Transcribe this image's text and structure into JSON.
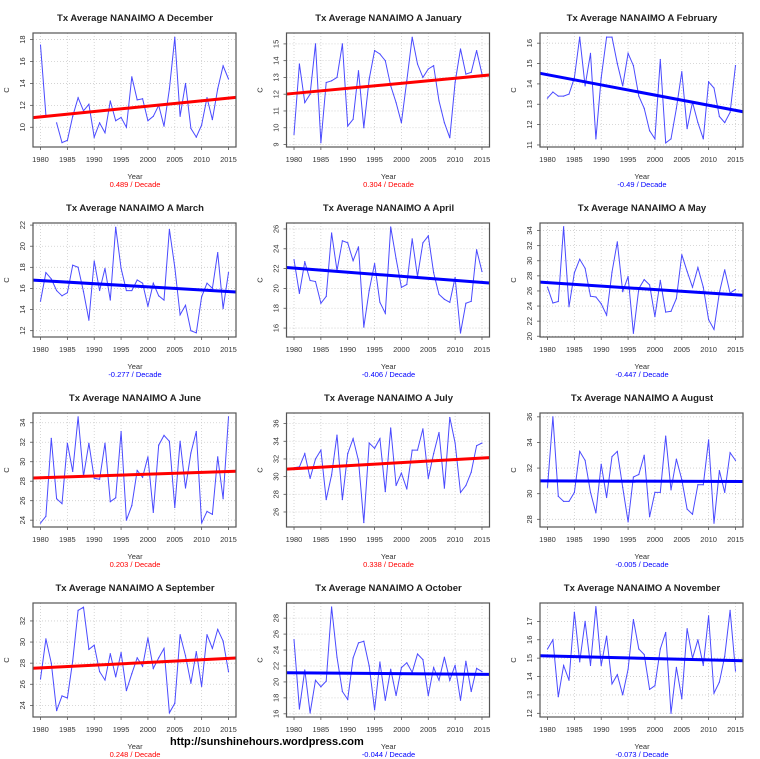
{
  "footer": "http://sunshinehours.wordpress.com",
  "colors": {
    "series": "#4a4aff",
    "up_trend": "#ff0000",
    "down_trend": "#0000ff",
    "grid": "#cccccc",
    "frame": "#555555"
  },
  "chart_data": [
    {
      "type": "line",
      "title": "Tx Average NANAIMO A December",
      "xlabel": "Year",
      "ylabel": "C",
      "decade_label": "0.489  / Decade",
      "trend_color": "#ff0000",
      "xlim": [
        1978.6,
        2016.4
      ],
      "ylim": [
        8.2,
        18.6
      ],
      "yticks": [
        10,
        12,
        14,
        16,
        18
      ],
      "xticks": [
        1980,
        1985,
        1990,
        1995,
        2000,
        2005,
        2010,
        2015
      ],
      "grid": true,
      "x_start": 1980,
      "values": [
        17.5,
        11.1,
        null,
        10.4,
        8.6,
        8.8,
        11.0,
        12.7,
        11.5,
        12.1,
        9.1,
        10.4,
        9.5,
        12.4,
        10.6,
        10.9,
        10.0,
        14.6,
        12.5,
        12.6,
        10.6,
        11.0,
        12.0,
        10.1,
        13.5,
        18.2,
        11.0,
        14.0,
        9.9,
        9.1,
        10.2,
        12.7,
        10.7,
        13.5,
        15.6,
        14.4
      ],
      "trend": {
        "start": [
          1980,
          10.95
        ],
        "end": [
          2015,
          12.66
        ]
      }
    },
    {
      "type": "line",
      "title": "Tx Average NANAIMO A January",
      "xlabel": "Year",
      "ylabel": "C",
      "decade_label": "0.304  / Decade",
      "trend_color": "#ff0000",
      "xlim": [
        1978.6,
        2016.4
      ],
      "ylim": [
        8.85,
        15.65
      ],
      "yticks": [
        9,
        10,
        11,
        12,
        13,
        14,
        15
      ],
      "xticks": [
        1980,
        1985,
        1990,
        1995,
        2000,
        2005,
        2010,
        2015
      ],
      "grid": true,
      "x_start": 1980,
      "values": [
        9.6,
        13.8,
        11.5,
        12.0,
        15.0,
        9.1,
        12.7,
        12.8,
        13.0,
        15.0,
        10.1,
        10.5,
        13.4,
        10.0,
        12.9,
        14.6,
        14.4,
        14.0,
        12.5,
        11.5,
        10.3,
        12.8,
        15.4,
        13.8,
        13.0,
        13.5,
        13.7,
        11.6,
        10.3,
        9.4,
        12.7,
        14.7,
        13.2,
        13.3,
        14.6,
        13.2
      ],
      "trend": {
        "start": [
          1980,
          12.05
        ],
        "end": [
          2015,
          13.1
        ]
      }
    },
    {
      "type": "line",
      "title": "Tx Average NANAIMO A February",
      "xlabel": "Year",
      "ylabel": "C",
      "decade_label": "-0.49  / Decade",
      "trend_color": "#0000ff",
      "xlim": [
        1978.6,
        2016.4
      ],
      "ylim": [
        10.9,
        16.5
      ],
      "yticks": [
        11,
        12,
        13,
        14,
        15,
        16
      ],
      "xticks": [
        1980,
        1985,
        1990,
        1995,
        2000,
        2005,
        2010,
        2015
      ],
      "grid": true,
      "x_start": 1980,
      "values": [
        13.3,
        13.6,
        13.4,
        13.4,
        13.5,
        14.3,
        16.3,
        13.9,
        15.5,
        11.3,
        14.3,
        16.3,
        16.3,
        15.0,
        13.9,
        15.5,
        14.9,
        13.4,
        12.8,
        11.7,
        11.3,
        15.2,
        11.1,
        11.3,
        12.8,
        14.6,
        11.8,
        13.1,
        12.1,
        11.3,
        14.1,
        13.8,
        12.4,
        12.1,
        12.6,
        14.9
      ],
      "trend": {
        "start": [
          1980,
          14.45
        ],
        "end": [
          2015,
          12.7
        ]
      }
    },
    {
      "type": "line",
      "title": "Tx Average NANAIMO A March",
      "xlabel": "Year",
      "ylabel": "C",
      "decade_label": "-0.277  / Decade",
      "trend_color": "#0000ff",
      "xlim": [
        1978.6,
        2016.4
      ],
      "ylim": [
        11.4,
        22.2
      ],
      "yticks": [
        12,
        14,
        16,
        18,
        20,
        22
      ],
      "xticks": [
        1980,
        1985,
        1990,
        1995,
        2000,
        2005,
        2010,
        2015
      ],
      "grid": true,
      "x_start": 1980,
      "values": [
        14.8,
        17.5,
        16.9,
        15.8,
        15.3,
        15.6,
        18.2,
        18.0,
        15.7,
        13.0,
        18.6,
        15.8,
        17.9,
        14.9,
        21.8,
        17.9,
        15.8,
        15.8,
        16.8,
        16.5,
        14.3,
        16.5,
        15.3,
        14.9,
        21.6,
        18.0,
        13.5,
        14.4,
        12.0,
        11.8,
        15.2,
        16.5,
        16.0,
        19.4,
        14.1,
        17.5
      ],
      "trend": {
        "start": [
          1980,
          16.75
        ],
        "end": [
          2015,
          15.7
        ]
      }
    },
    {
      "type": "line",
      "title": "Tx Average NANAIMO A April",
      "xlabel": "Year",
      "ylabel": "C",
      "decade_label": "-0.406  / Decade",
      "trend_color": "#0000ff",
      "xlim": [
        1978.6,
        2016.4
      ],
      "ylim": [
        15.1,
        26.6
      ],
      "yticks": [
        16,
        18,
        20,
        22,
        24,
        26
      ],
      "xticks": [
        1980,
        1985,
        1990,
        1995,
        2000,
        2005,
        2010,
        2015
      ],
      "grid": true,
      "x_start": 1980,
      "values": [
        22.9,
        19.5,
        22.7,
        20.8,
        20.7,
        18.5,
        19.2,
        25.6,
        21.8,
        24.8,
        24.6,
        22.8,
        24.2,
        16.1,
        19.8,
        22.5,
        18.6,
        17.5,
        26.2,
        23.0,
        20.1,
        20.4,
        25.0,
        21.2,
        24.6,
        25.3,
        21.6,
        19.4,
        18.9,
        18.6,
        21.1,
        15.5,
        18.5,
        18.7,
        23.9,
        21.7
      ],
      "trend": {
        "start": [
          1980,
          22.05
        ],
        "end": [
          2015,
          20.6
        ]
      }
    },
    {
      "type": "line",
      "title": "Tx Average NANAIMO A May",
      "xlabel": "Year",
      "ylabel": "C",
      "decade_label": "-0.447  / Decade",
      "trend_color": "#0000ff",
      "xlim": [
        1978.6,
        2016.4
      ],
      "ylim": [
        19.9,
        35.0
      ],
      "yticks": [
        20,
        22,
        24,
        26,
        28,
        30,
        32,
        34
      ],
      "xticks": [
        1980,
        1985,
        1990,
        1995,
        2000,
        2005,
        2010,
        2015
      ],
      "grid": true,
      "x_start": 1980,
      "values": [
        26.5,
        24.4,
        24.6,
        34.5,
        23.9,
        28.4,
        30.2,
        29.0,
        25.3,
        25.2,
        24.3,
        22.8,
        28.5,
        32.5,
        25.9,
        27.9,
        20.4,
        26.3,
        27.5,
        26.8,
        22.6,
        27.4,
        23.2,
        23.3,
        25.0,
        30.8,
        28.6,
        26.5,
        29.1,
        26.5,
        22.2,
        20.9,
        25.8,
        28.8,
        25.7,
        26.2
      ],
      "trend": {
        "start": [
          1980,
          27.1
        ],
        "end": [
          2015,
          25.5
        ]
      }
    },
    {
      "type": "line",
      "title": "Tx Average NANAIMO A June",
      "xlabel": "Year",
      "ylabel": "C",
      "decade_label": "0.203  / Decade",
      "trend_color": "#ff0000",
      "xlim": [
        1978.6,
        2016.4
      ],
      "ylim": [
        23.3,
        35.0
      ],
      "yticks": [
        24,
        26,
        28,
        30,
        32,
        34
      ],
      "xticks": [
        1980,
        1985,
        1990,
        1995,
        2000,
        2005,
        2010,
        2015
      ],
      "grid": true,
      "x_start": 1980,
      "values": [
        23.7,
        24.4,
        32.4,
        26.2,
        25.7,
        31.9,
        29.0,
        34.6,
        28.5,
        31.9,
        28.3,
        28.2,
        31.9,
        25.9,
        26.3,
        33.1,
        24.0,
        25.5,
        29.1,
        28.4,
        30.5,
        24.8,
        31.7,
        32.7,
        32.1,
        25.3,
        32.1,
        27.3,
        30.9,
        33.1,
        23.7,
        24.9,
        24.6,
        30.5,
        26.2,
        34.6
      ],
      "trend": {
        "start": [
          1980,
          28.35
        ],
        "end": [
          2015,
          29.0
        ]
      }
    },
    {
      "type": "line",
      "title": "Tx Average NANAIMO A July",
      "xlabel": "Year",
      "ylabel": "C",
      "decade_label": "0.338  / Decade",
      "trend_color": "#ff0000",
      "xlim": [
        1978.6,
        2016.4
      ],
      "ylim": [
        24.3,
        37.2
      ],
      "yticks": [
        26,
        28,
        30,
        32,
        34,
        36
      ],
      "xticks": [
        1980,
        1985,
        1990,
        1995,
        2000,
        2005,
        2010,
        2015
      ],
      "grid": true,
      "x_start": 1980,
      "values": [
        31.0,
        31.1,
        32.6,
        29.8,
        32.0,
        33.0,
        27.4,
        30.2,
        34.7,
        27.4,
        32.6,
        34.3,
        31.8,
        24.8,
        33.8,
        33.2,
        34.3,
        28.3,
        35.5,
        29.0,
        30.4,
        28.6,
        33.0,
        33.0,
        35.4,
        29.8,
        32.6,
        35.0,
        28.7,
        36.7,
        33.8,
        28.2,
        29.0,
        30.5,
        33.5,
        33.8
      ],
      "trend": {
        "start": [
          1980,
          30.9
        ],
        "end": [
          2015,
          32.1
        ]
      }
    },
    {
      "type": "line",
      "title": "Tx Average NANAIMO A August",
      "xlabel": "Year",
      "ylabel": "C",
      "decade_label": "-0.005  / Decade",
      "trend_color": "#0000ff",
      "xlim": [
        1978.6,
        2016.4
      ],
      "ylim": [
        27.4,
        36.3
      ],
      "yticks": [
        28,
        30,
        32,
        34,
        36
      ],
      "xticks": [
        1980,
        1985,
        1990,
        1995,
        2000,
        2005,
        2010,
        2015
      ],
      "grid": true,
      "x_start": 1980,
      "values": [
        30.5,
        36.0,
        29.8,
        29.4,
        29.4,
        30.1,
        33.3,
        32.6,
        30.1,
        28.5,
        32.3,
        29.7,
        32.9,
        33.3,
        30.5,
        27.8,
        31.3,
        31.5,
        33.0,
        28.2,
        30.1,
        30.1,
        34.5,
        30.3,
        32.7,
        31.1,
        28.8,
        28.4,
        30.7,
        30.7,
        34.2,
        27.7,
        31.8,
        30.1,
        33.2,
        32.6
      ],
      "trend": {
        "start": [
          1980,
          31.0
        ],
        "end": [
          2015,
          30.95
        ]
      }
    },
    {
      "type": "line",
      "title": "Tx Average NANAIMO A September",
      "xlabel": "Year",
      "ylabel": "C",
      "decade_label": "0.248  / Decade",
      "trend_color": "#ff0000",
      "xlim": [
        1978.6,
        2016.4
      ],
      "ylim": [
        22.9,
        33.7
      ],
      "yticks": [
        24,
        26,
        28,
        30,
        32
      ],
      "xticks": [
        1980,
        1985,
        1990,
        1995,
        2000,
        2005,
        2010,
        2015
      ],
      "grid": true,
      "x_start": 1980,
      "values": [
        26.5,
        30.3,
        28.0,
        23.5,
        24.9,
        24.7,
        28.2,
        33.0,
        33.3,
        29.3,
        29.7,
        27.2,
        26.4,
        28.9,
        26.7,
        29.0,
        25.4,
        27.0,
        28.5,
        27.7,
        30.4,
        27.5,
        28.5,
        29.4,
        23.3,
        24.2,
        30.7,
        28.7,
        26.1,
        29.1,
        25.8,
        30.7,
        29.4,
        31.2,
        30.1,
        27.2
      ],
      "trend": {
        "start": [
          1980,
          27.55
        ],
        "end": [
          2015,
          28.45
        ]
      }
    },
    {
      "type": "line",
      "title": "Tx Average NANAIMO A October",
      "xlabel": "Year",
      "ylabel": "C",
      "decade_label": "-0.044  / Decade",
      "trend_color": "#0000ff",
      "xlim": [
        1978.6,
        2016.4
      ],
      "ylim": [
        15.6,
        29.9
      ],
      "yticks": [
        16,
        18,
        20,
        22,
        24,
        26,
        28
      ],
      "xticks": [
        1980,
        1985,
        1990,
        1995,
        2000,
        2005,
        2010,
        2015
      ],
      "grid": true,
      "x_start": 1980,
      "values": [
        25.3,
        16.6,
        21.5,
        16.1,
        20.2,
        19.4,
        20.1,
        29.4,
        23.1,
        18.8,
        17.8,
        23.0,
        24.9,
        25.1,
        22.0,
        16.5,
        22.5,
        17.7,
        21.6,
        18.3,
        21.8,
        22.4,
        21.2,
        23.5,
        22.8,
        18.3,
        21.8,
        20.2,
        23.1,
        20.2,
        22.1,
        17.7,
        22.6,
        18.8,
        21.7,
        21.3
      ],
      "trend": {
        "start": [
          1980,
          21.15
        ],
        "end": [
          2015,
          20.95
        ]
      }
    },
    {
      "type": "line",
      "title": "Tx Average NANAIMO A November",
      "xlabel": "Year",
      "ylabel": "C",
      "decade_label": "-0.073  / Decade",
      "trend_color": "#0000ff",
      "xlim": [
        1978.6,
        2016.4
      ],
      "ylim": [
        11.8,
        18.0
      ],
      "yticks": [
        12,
        13,
        14,
        15,
        16,
        17
      ],
      "xticks": [
        1980,
        1985,
        1990,
        1995,
        2000,
        2005,
        2010,
        2015
      ],
      "grid": true,
      "x_start": 1980,
      "values": [
        15.5,
        16.0,
        12.9,
        14.6,
        13.8,
        17.5,
        14.8,
        17.0,
        14.6,
        17.8,
        14.6,
        16.2,
        13.6,
        14.1,
        13.0,
        14.4,
        17.1,
        15.5,
        15.2,
        13.3,
        13.5,
        15.5,
        16.4,
        12.0,
        14.5,
        12.8,
        16.6,
        15.0,
        16.0,
        14.6,
        17.3,
        13.1,
        13.7,
        15.1,
        17.6,
        14.3
      ],
      "trend": {
        "start": [
          1980,
          15.12
        ],
        "end": [
          2015,
          14.87
        ]
      }
    }
  ]
}
